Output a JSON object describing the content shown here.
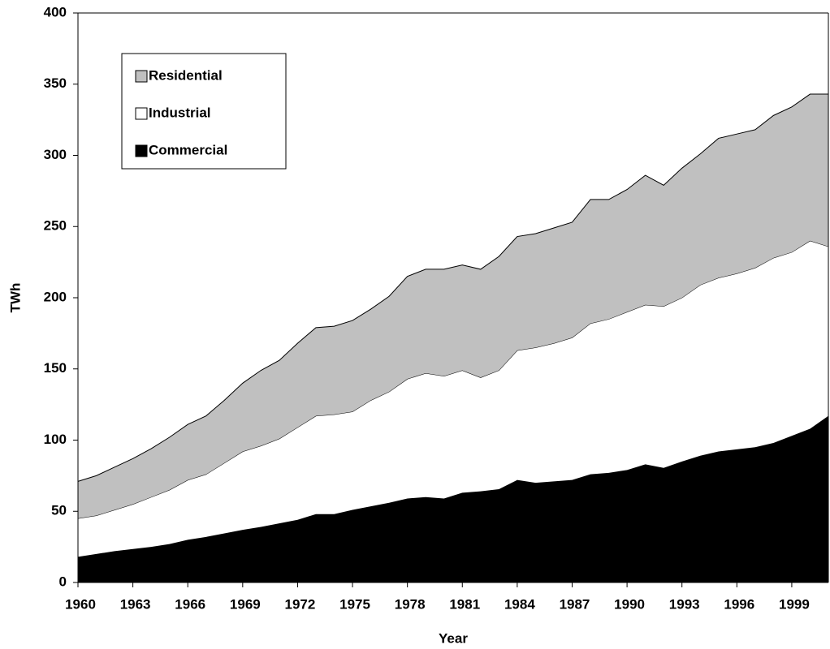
{
  "chart_data": {
    "type": "stacked-area",
    "x_label": "Year",
    "y_label": "TWh",
    "x": [
      1960,
      1961,
      1962,
      1963,
      1964,
      1965,
      1966,
      1967,
      1968,
      1969,
      1970,
      1971,
      1972,
      1973,
      1974,
      1975,
      1976,
      1977,
      1978,
      1979,
      1980,
      1981,
      1982,
      1983,
      1984,
      1985,
      1986,
      1987,
      1988,
      1989,
      1990,
      1991,
      1992,
      1993,
      1994,
      1995,
      1996,
      1997,
      1998,
      1999,
      2000,
      2001
    ],
    "xlim": [
      1960,
      2001
    ],
    "xticks": [
      1960,
      1963,
      1966,
      1969,
      1972,
      1975,
      1978,
      1981,
      1984,
      1987,
      1990,
      1993,
      1996,
      1999
    ],
    "ylim": [
      0,
      400
    ],
    "yticks": [
      0,
      50,
      100,
      150,
      200,
      250,
      300,
      350,
      400
    ],
    "grid": false,
    "legend": "upper left",
    "series": [
      {
        "name": "Residential",
        "color": "#c0c0c0",
        "values": [
          26,
          28,
          30,
          32,
          34,
          37,
          39,
          41,
          44,
          48,
          53,
          55,
          59,
          62,
          62,
          64,
          64,
          67,
          72,
          73,
          75,
          74,
          76,
          80,
          80,
          80,
          81,
          81,
          87,
          84,
          86,
          91,
          85,
          91,
          92,
          98,
          98,
          97,
          100,
          102,
          103,
          107
        ]
      },
      {
        "name": "Industrial",
        "color": "#ffffff",
        "values": [
          27,
          27,
          29,
          31.5,
          35,
          38,
          42,
          44,
          49.5,
          55,
          57,
          59.5,
          65,
          69,
          70,
          69,
          74.5,
          78,
          84,
          87,
          86,
          86,
          80,
          83.5,
          91,
          95,
          97,
          100,
          106,
          108,
          111,
          112,
          113.5,
          115,
          120,
          122,
          123.5,
          126,
          130,
          129,
          132,
          119
        ]
      },
      {
        "name": "Commercial",
        "color": "#000000",
        "values": [
          18,
          20,
          22,
          23.5,
          25,
          27,
          30,
          32,
          34.5,
          37,
          39,
          41.5,
          44,
          48,
          48,
          51,
          53.5,
          56,
          59,
          60,
          59,
          63,
          64,
          65.5,
          72,
          70,
          71,
          72,
          76,
          77,
          79,
          83,
          80.5,
          85,
          89,
          92,
          93.5,
          95,
          98,
          103,
          108,
          117
        ]
      }
    ]
  }
}
